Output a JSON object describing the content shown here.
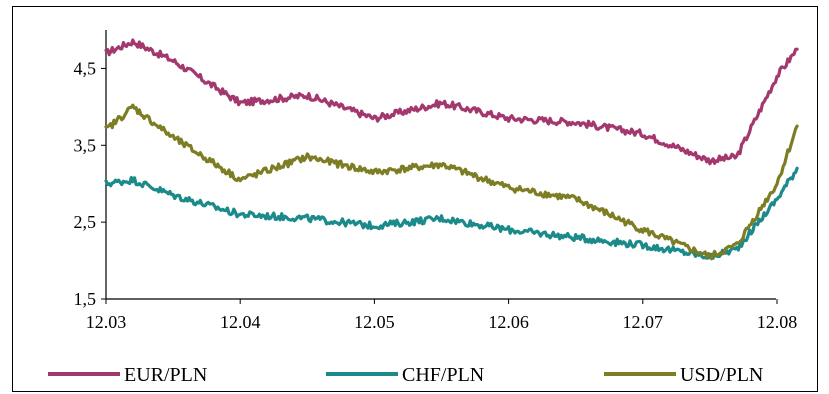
{
  "chart_data": {
    "type": "line",
    "x_ticks": [
      "12.03",
      "12.04",
      "12.05",
      "12.06",
      "12.07",
      "12.08"
    ],
    "y_ticks": [
      "1,5",
      "2,5",
      "3,5",
      "4,5"
    ],
    "ylim": [
      1.5,
      5.0
    ],
    "grid": false,
    "legend_position": "bottom",
    "series": [
      {
        "name": "EUR/PLN",
        "color": "#a3386e",
        "x": [
          12.03,
          12.032,
          12.035,
          12.04,
          12.045,
          12.05,
          12.055,
          12.06,
          12.065,
          12.07,
          12.075,
          12.077,
          12.08,
          12.0815
        ],
        "values": [
          4.7,
          4.85,
          4.6,
          4.05,
          4.15,
          3.85,
          4.05,
          3.85,
          3.8,
          3.65,
          3.3,
          3.35,
          4.4,
          4.75
        ]
      },
      {
        "name": "CHF/PLN",
        "color": "#1a8a8a",
        "x": [
          12.03,
          12.032,
          12.035,
          12.04,
          12.045,
          12.05,
          12.055,
          12.06,
          12.065,
          12.07,
          12.075,
          12.077,
          12.08,
          12.0815
        ],
        "values": [
          3.0,
          3.05,
          2.85,
          2.6,
          2.55,
          2.45,
          2.55,
          2.4,
          2.3,
          2.2,
          2.05,
          2.15,
          2.8,
          3.2
        ]
      },
      {
        "name": "USD/PLN",
        "color": "#7d7d23",
        "x": [
          12.03,
          12.032,
          12.035,
          12.04,
          12.045,
          12.05,
          12.055,
          12.06,
          12.065,
          12.07,
          12.075,
          12.077,
          12.08,
          12.0815
        ],
        "values": [
          3.7,
          4.0,
          3.6,
          3.05,
          3.35,
          3.15,
          3.25,
          2.95,
          2.8,
          2.4,
          2.05,
          2.2,
          3.0,
          3.75
        ]
      }
    ]
  }
}
